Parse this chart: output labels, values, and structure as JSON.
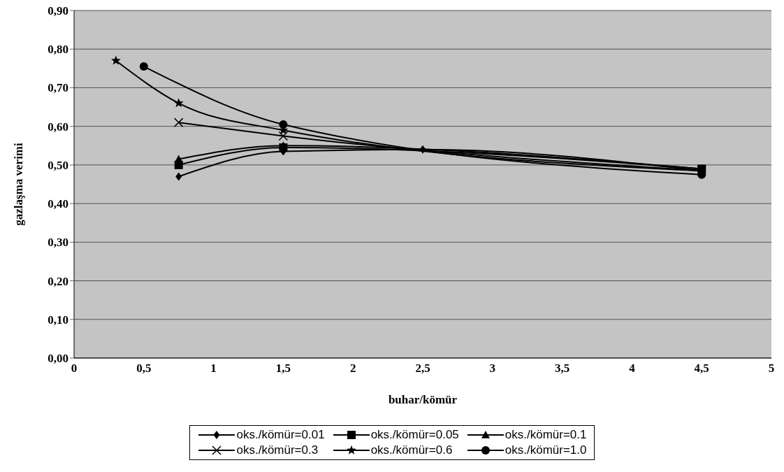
{
  "chart_data": {
    "type": "line",
    "xlabel": "buhar/kömür",
    "ylabel": "gazlaşma verimi",
    "xlim": [
      0,
      5
    ],
    "xticks": [
      0,
      {
        "value": 0.5,
        "label": "0,5"
      },
      1,
      {
        "value": 1.5,
        "label": "1,5"
      },
      2,
      {
        "value": 2.5,
        "label": "2,5"
      },
      3,
      {
        "value": 3.5,
        "label": "3,5"
      },
      4,
      {
        "value": 4.5,
        "label": "4,5"
      },
      5
    ],
    "ylim": [
      0,
      0.9
    ],
    "yticks": [
      {
        "value": 0,
        "label": "0,00"
      },
      {
        "value": 0.1,
        "label": "0,10"
      },
      {
        "value": 0.2,
        "label": "0,20"
      },
      {
        "value": 0.3,
        "label": "0,30"
      },
      {
        "value": 0.4,
        "label": "0,40"
      },
      {
        "value": 0.5,
        "label": "0,50"
      },
      {
        "value": 0.6,
        "label": "0,60"
      },
      {
        "value": 0.7,
        "label": "0,70"
      },
      {
        "value": 0.8,
        "label": "0,80"
      },
      {
        "value": 0.9,
        "label": "0,90"
      }
    ],
    "grid": "y",
    "legend": "bottom",
    "line_style": "solid",
    "series": [
      {
        "name": "oks./kömür=0.01",
        "color": "#000000",
        "marker": "diamond",
        "x": [
          0.75,
          1.5,
          2.5,
          4.5
        ],
        "values": [
          0.47,
          0.535,
          0.54,
          0.485
        ]
      },
      {
        "name": "oks./kömür=0.05",
        "color": "#000000",
        "marker": "square",
        "x": [
          0.75,
          1.5,
          4.5
        ],
        "values": [
          0.5,
          0.545,
          0.49
        ]
      },
      {
        "name": "oks./kömür=0.1",
        "color": "#000000",
        "marker": "triangle",
        "x": [
          0.75,
          1.5,
          4.5
        ],
        "values": [
          0.515,
          0.55,
          0.49
        ]
      },
      {
        "name": "oks./kömür=0.3",
        "color": "#000000",
        "marker": "cross",
        "x": [
          0.75,
          1.5,
          4.5
        ],
        "values": [
          0.61,
          0.575,
          0.485
        ]
      },
      {
        "name": "oks./kömür=0.6",
        "color": "#000000",
        "marker": "star",
        "x": [
          0.3,
          0.75,
          1.5,
          4.5
        ],
        "values": [
          0.77,
          0.66,
          0.59,
          0.485
        ]
      },
      {
        "name": "oks./kömür=1.0",
        "color": "#000000",
        "marker": "circle",
        "x": [
          0.5,
          1.5,
          4.5
        ],
        "values": [
          0.755,
          0.605,
          0.475
        ]
      }
    ]
  }
}
